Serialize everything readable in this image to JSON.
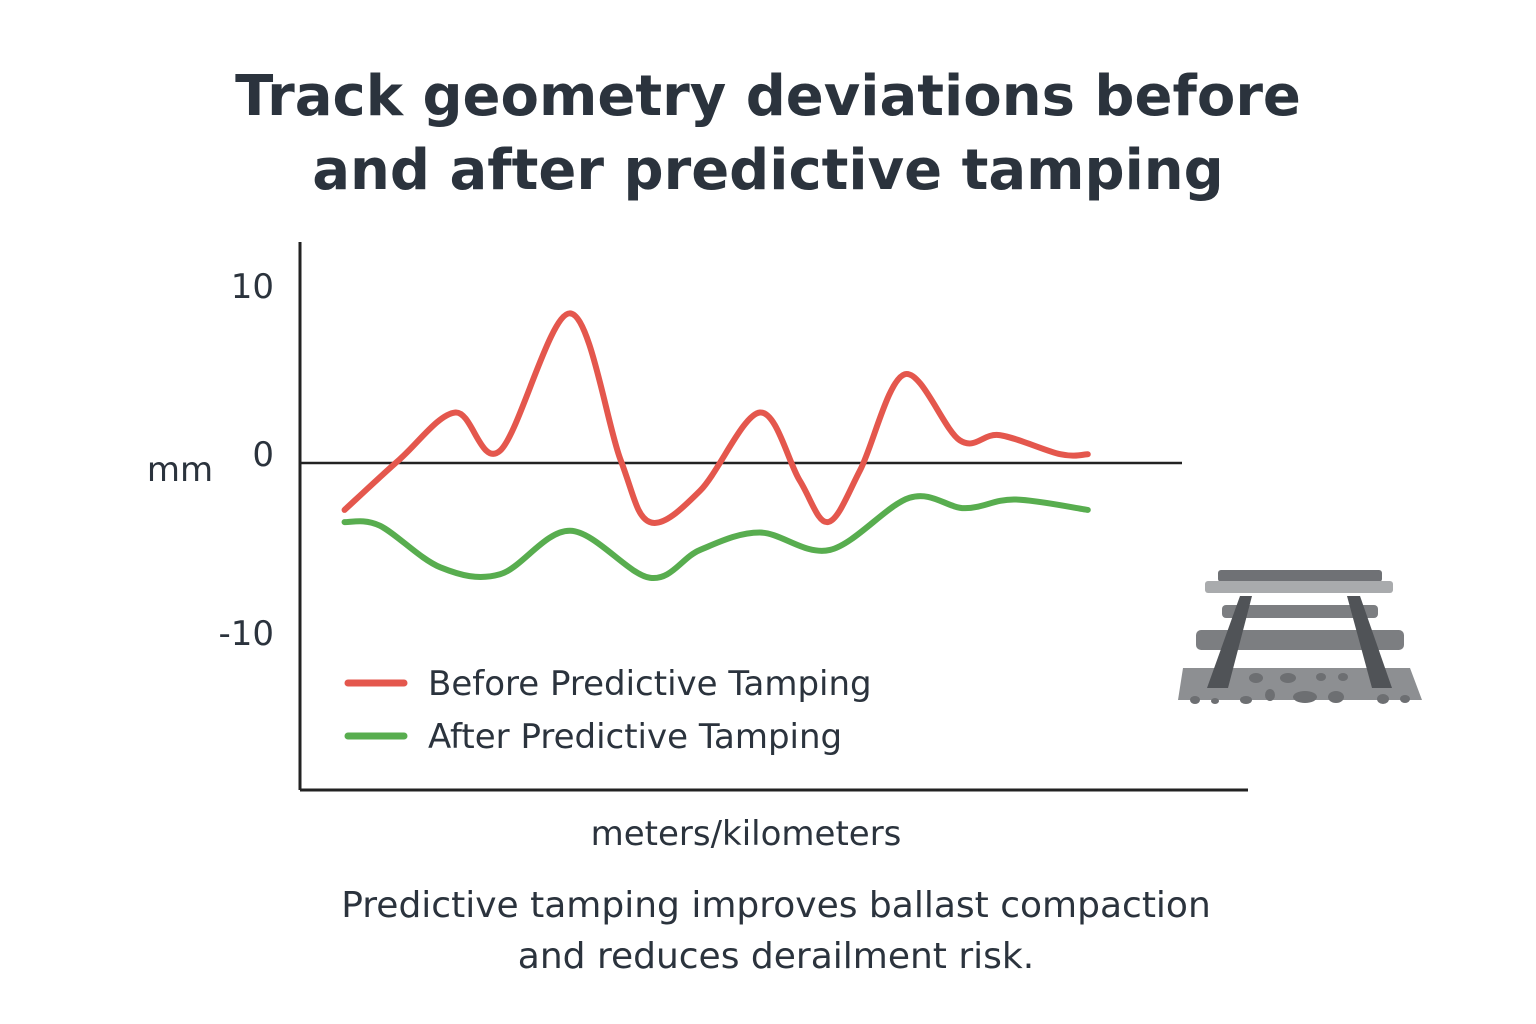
{
  "chart_data": {
    "type": "line",
    "title": "Track geometry deviations before and after predictive tamping",
    "title_lines": [
      "Track geometry deviations before",
      "and after predictive tamping"
    ],
    "xlabel": "meters/kilometers",
    "ylabel": "mm",
    "ylim": [
      -18.8,
      12.7
    ],
    "xlim": [
      0,
      100
    ],
    "yticks": [
      10,
      0,
      -10
    ],
    "ytick_labels": [
      "10",
      "0",
      "-10"
    ],
    "grid": false,
    "zero_line": true,
    "legend_position": "bottom-left",
    "series": [
      {
        "name": "Before Predictive Tamping",
        "color": "#e4574d",
        "x": [
          4.7,
          10.5,
          16.4,
          21.1,
          28.5,
          33.8,
          36.9,
          42.2,
          48.5,
          52.7,
          55.7,
          59.1,
          63.8,
          69.6,
          73.8,
          80.2,
          83.1
        ],
        "y": [
          -2.7,
          0.2,
          2.9,
          0.7,
          8.6,
          0.2,
          -3.4,
          -1.6,
          2.9,
          -1.0,
          -3.4,
          -0.4,
          5.1,
          1.3,
          1.6,
          0.5,
          0.5
        ]
      },
      {
        "name": "After Predictive Tamping",
        "color": "#58ad4f",
        "x": [
          4.7,
          8.4,
          14.8,
          21.1,
          28.5,
          36.9,
          42.2,
          48.5,
          55.9,
          64.3,
          70.1,
          75.4,
          83.1
        ],
        "y": [
          -3.4,
          -3.6,
          -6.0,
          -6.4,
          -3.9,
          -6.6,
          -5.0,
          -4.0,
          -5.0,
          -2.0,
          -2.6,
          -2.1,
          -2.7
        ]
      }
    ]
  },
  "caption_lines": [
    "Predictive tamping improves ballast compaction",
    "and reduces derailment risk."
  ],
  "icons": {
    "illustration": "railway-track-icon"
  }
}
